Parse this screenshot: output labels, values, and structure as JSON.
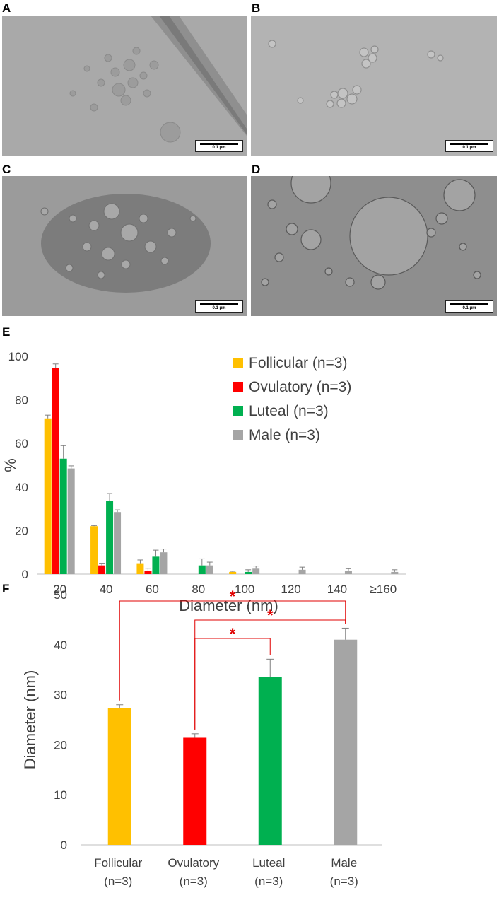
{
  "panels": {
    "a": {
      "letter": "A",
      "scale_bar": "0.1 μm"
    },
    "b": {
      "letter": "B",
      "scale_bar": "0.1 μm"
    },
    "c": {
      "letter": "C",
      "scale_bar": "0.1 μm"
    },
    "d": {
      "letter": "D",
      "scale_bar": "0.1 μm"
    },
    "e": {
      "letter": "E"
    },
    "f": {
      "letter": "F"
    }
  },
  "chart_data": [
    {
      "type": "bar",
      "panel": "E",
      "xlabel": "Diameter (nm)",
      "ylabel": "%",
      "ylim": [
        0,
        100
      ],
      "yticks": [
        0,
        20,
        40,
        60,
        80,
        100
      ],
      "grid": false,
      "legend_position": "top-right",
      "categories": [
        "20",
        "40",
        "60",
        "80",
        "100",
        "120",
        "140",
        "≥160"
      ],
      "series": [
        {
          "name": "Follicular (n=3)",
          "color": "#FFC000",
          "values": [
            71.5,
            22,
            5,
            0,
            1,
            0,
            0,
            0
          ],
          "errors": [
            1.5,
            0.3,
            1.5,
            0,
            0.3,
            0,
            0,
            0
          ]
        },
        {
          "name": "Ovulatory (n=3)",
          "color": "#FF0000",
          "values": [
            94.5,
            4,
            1.5,
            0,
            0,
            0,
            0,
            0
          ],
          "errors": [
            2,
            1,
            1.2,
            0,
            0,
            0,
            0,
            0
          ]
        },
        {
          "name": "Luteal (n=3)",
          "color": "#00B050",
          "values": [
            53,
            33.5,
            8,
            4,
            1,
            0,
            0,
            0
          ],
          "errors": [
            6,
            3.5,
            3,
            3,
            1,
            0,
            0,
            0
          ]
        },
        {
          "name": "Male (n=3)",
          "color": "#A5A5A5",
          "values": [
            48.5,
            28.5,
            10,
            4,
            2.5,
            2,
            1.5,
            1
          ],
          "errors": [
            1.2,
            1,
            1.5,
            1.5,
            1.2,
            1.2,
            1,
            1
          ]
        }
      ]
    },
    {
      "type": "bar",
      "panel": "F",
      "xlabel": "",
      "ylabel": "Diameter (nm)",
      "ylim": [
        0,
        50
      ],
      "yticks": [
        0,
        10,
        20,
        30,
        40,
        50
      ],
      "grid": false,
      "categories": [
        {
          "line1": "Follicular",
          "line2": "(n=3)"
        },
        {
          "line1": "Ovulatory",
          "line2": "(n=3)"
        },
        {
          "line1": "Luteal",
          "line2": "(n=3)"
        },
        {
          "line1": "Male",
          "line2": "(n=3)"
        }
      ],
      "values": [
        27.3,
        21.4,
        33.5,
        41
      ],
      "errors": [
        0.7,
        0.8,
        3.6,
        2.3
      ],
      "colors": [
        "#FFC000",
        "#FF0000",
        "#00B050",
        "#A5A5A5"
      ],
      "significance": [
        {
          "from": 0,
          "to": 3,
          "label": "*",
          "color": "#E00000"
        },
        {
          "from": 1,
          "to": 3,
          "label": "*",
          "color": "#E00000"
        },
        {
          "from": 1,
          "to": 2,
          "label": "*",
          "color": "#E00000"
        }
      ]
    }
  ]
}
